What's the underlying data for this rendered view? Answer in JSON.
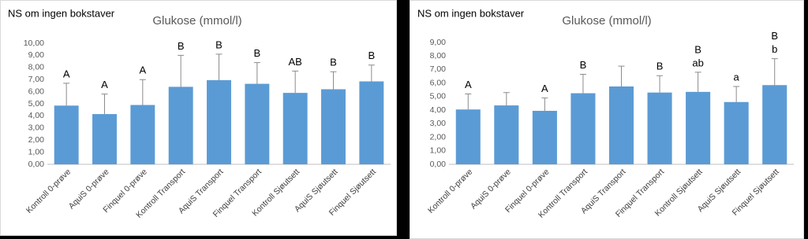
{
  "chart_data": [
    {
      "type": "bar",
      "title": "Glukose (mmol/l)",
      "subtitle": "NS om ingen bokstaver",
      "categories": [
        "Kontroll 0-prøve",
        "AquiS 0-prøve",
        "Finquel 0-prøve",
        "Kontroll Transport",
        "AquiS Transport",
        "Finquel Transport",
        "Kontroll Sjøutsett",
        "AquiS Sjøutsett",
        "Finquel Sjøutsett"
      ],
      "values": [
        4.85,
        4.15,
        4.9,
        6.4,
        6.95,
        6.65,
        5.9,
        6.2,
        6.85
      ],
      "errors": [
        1.85,
        1.65,
        2.1,
        2.6,
        2.15,
        1.75,
        1.8,
        1.45,
        1.35
      ],
      "annotations": [
        [
          "A"
        ],
        [
          "A"
        ],
        [
          "A"
        ],
        [
          "B"
        ],
        [
          "B"
        ],
        [
          "B"
        ],
        [
          "AB"
        ],
        [
          "B"
        ],
        [
          "B"
        ]
      ],
      "color": "#5b9bd5",
      "error_color": "#8c8c8c",
      "grid": false,
      "ylim": [
        0,
        10
      ],
      "yticks": [
        {
          "value": 0,
          "label": "0,00"
        },
        {
          "value": 1,
          "label": "1,00"
        },
        {
          "value": 2,
          "label": "2,00"
        },
        {
          "value": 3,
          "label": "3,00"
        },
        {
          "value": 4,
          "label": "4,00"
        },
        {
          "value": 5,
          "label": "5,00"
        },
        {
          "value": 6,
          "label": "6,00"
        },
        {
          "value": 7,
          "label": "7,00"
        },
        {
          "value": 8,
          "label": "8,00"
        },
        {
          "value": 9,
          "label": "9,00"
        },
        {
          "value": 10,
          "label": "10,00"
        }
      ]
    },
    {
      "type": "bar",
      "title": "Glukose (mmol/l)",
      "subtitle": "NS om ingen bokstaver",
      "categories": [
        "Kontroll 0-prøve",
        "AquiS 0-prøve",
        "Finquel 0-prøve",
        "Kontroll Transport",
        "AquiS Transport",
        "Finquel Transport",
        "Kontroll Sjøutsett",
        "AquiS Sjøutsett",
        "Finquel Sjøutsett"
      ],
      "values": [
        4.05,
        4.35,
        3.95,
        5.25,
        5.75,
        5.3,
        5.35,
        4.6,
        5.85
      ],
      "errors": [
        1.15,
        0.95,
        0.95,
        1.4,
        1.5,
        1.25,
        1.45,
        1.15,
        1.95
      ],
      "annotations": [
        [
          "A"
        ],
        [],
        [
          "A"
        ],
        [
          "B"
        ],
        [],
        [
          "B"
        ],
        [
          "B",
          "ab"
        ],
        [
          "a"
        ],
        [
          "B",
          "b"
        ]
      ],
      "color": "#5b9bd5",
      "error_color": "#8c8c8c",
      "grid": false,
      "ylim": [
        0,
        9
      ],
      "yticks": [
        {
          "value": 0,
          "label": "0,00"
        },
        {
          "value": 1,
          "label": "1,00"
        },
        {
          "value": 2,
          "label": "2,00"
        },
        {
          "value": 3,
          "label": "3,00"
        },
        {
          "value": 4,
          "label": "4,00"
        },
        {
          "value": 5,
          "label": "5,00"
        },
        {
          "value": 6,
          "label": "6,00"
        },
        {
          "value": 7,
          "label": "7,00"
        },
        {
          "value": 8,
          "label": "8,00"
        },
        {
          "value": 9,
          "label": "9,00"
        }
      ]
    }
  ]
}
